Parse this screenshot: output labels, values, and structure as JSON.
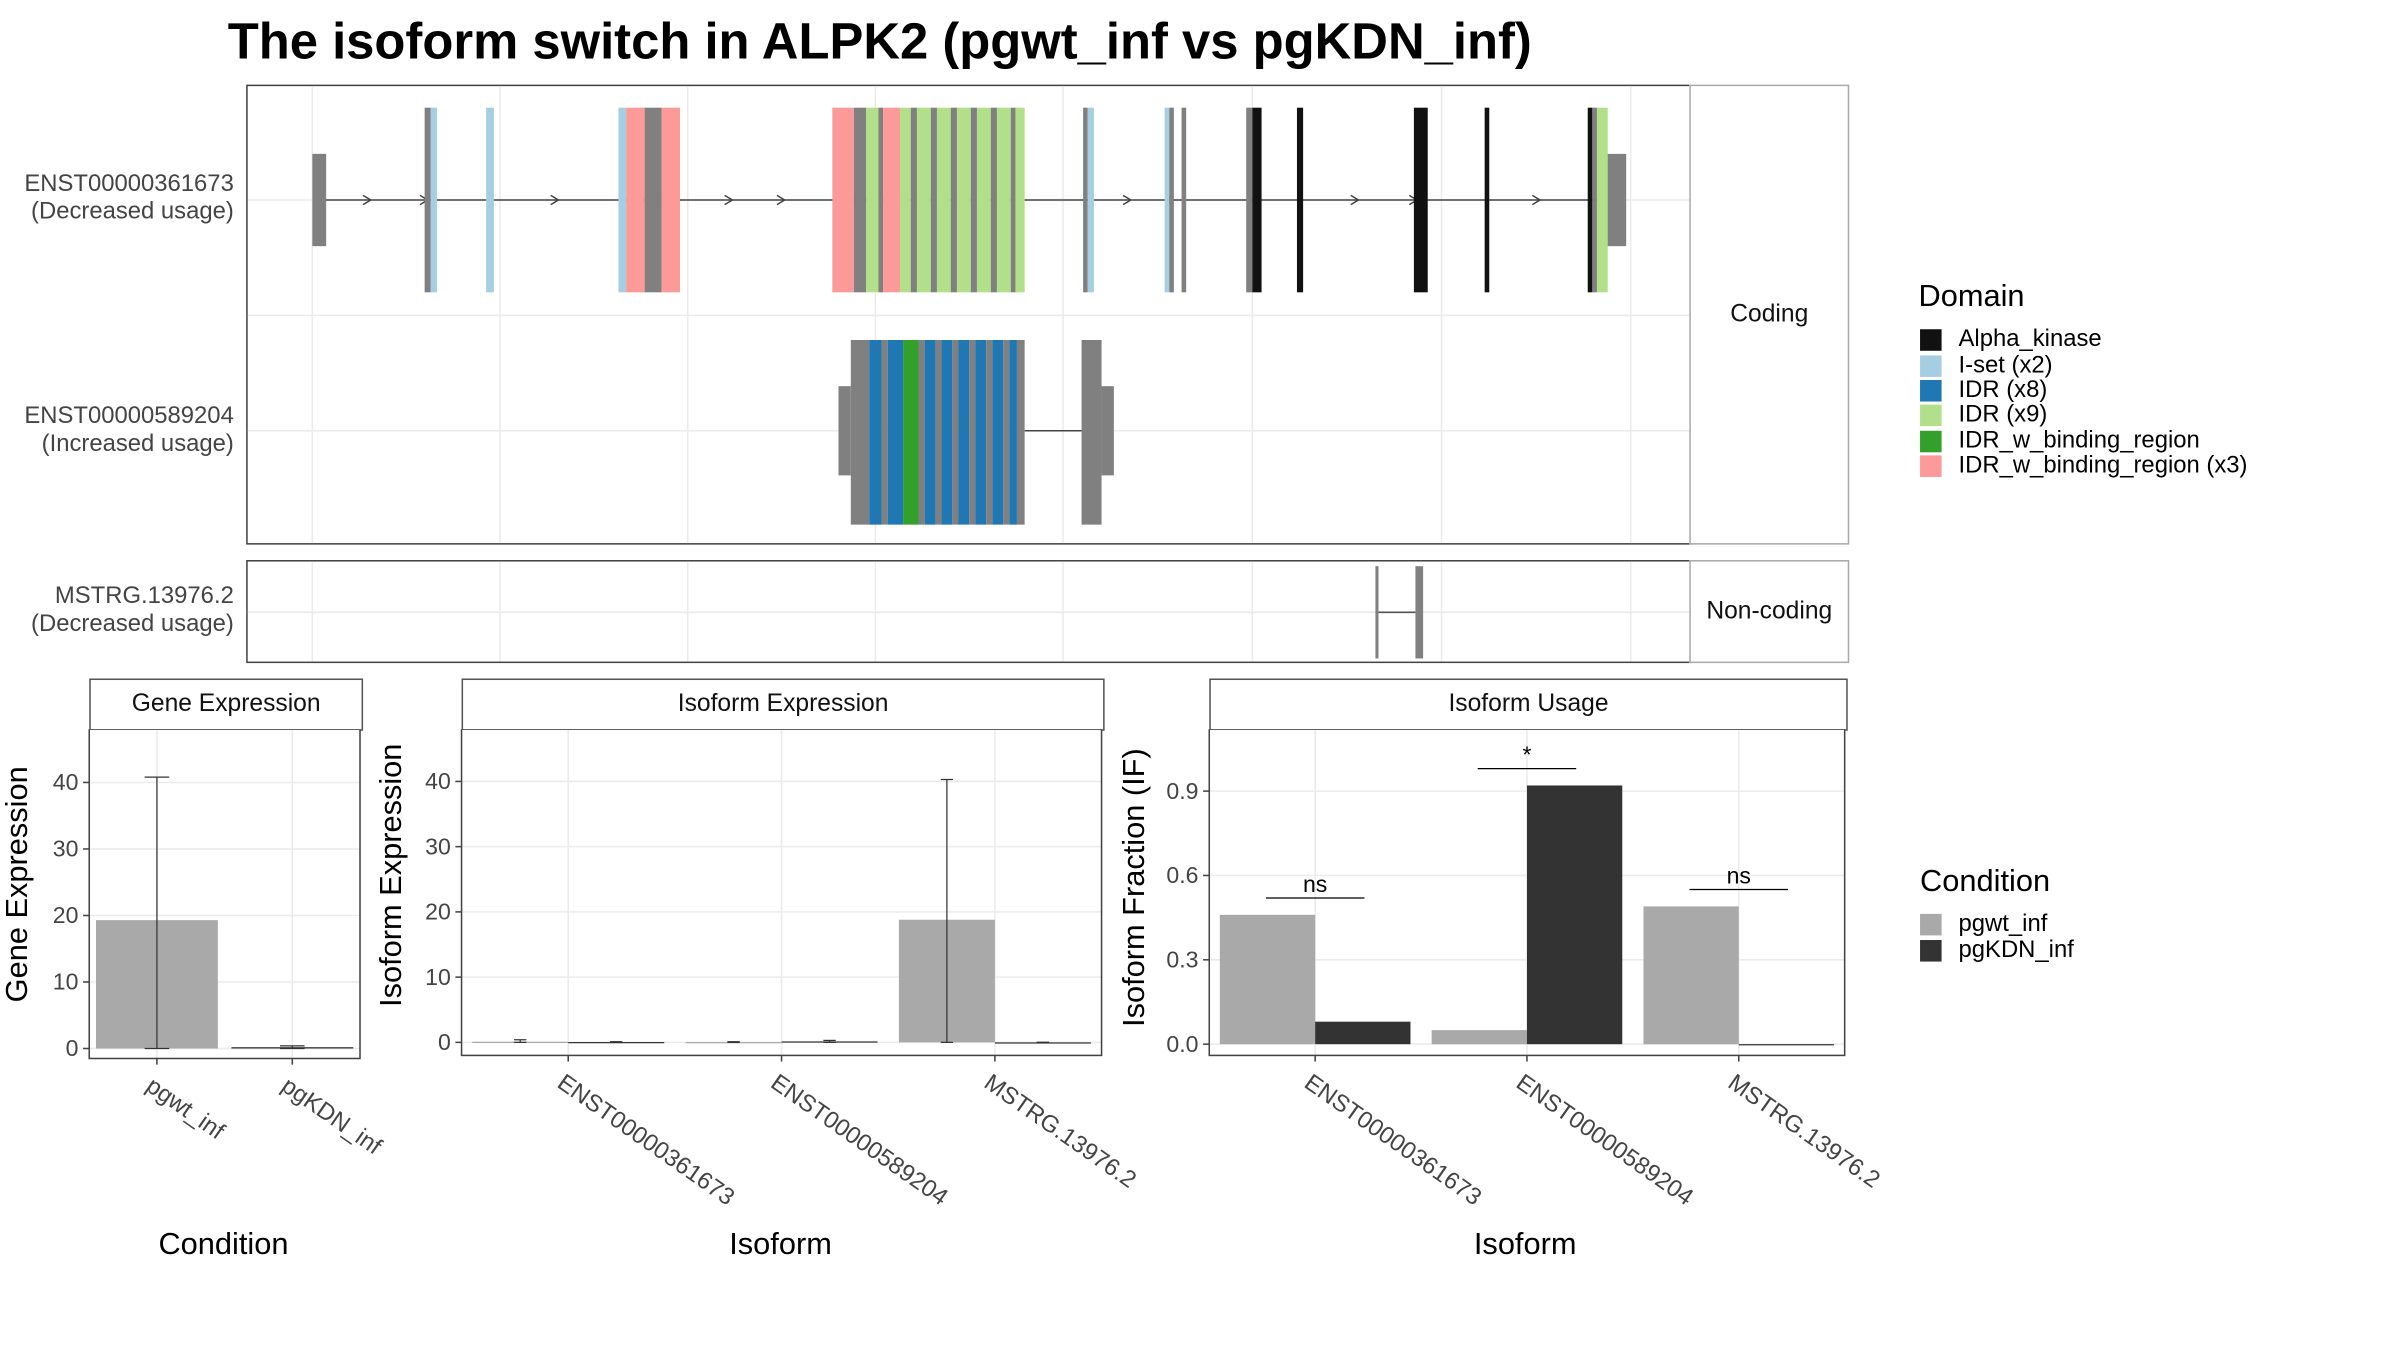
{
  "title": "The isoform switch in ALPK2 (pgwt_inf vs pgKDN_inf)",
  "structure": {
    "coding_label": "Coding",
    "noncoding_label": "Non-coding",
    "rows": [
      {
        "id": "ENST00000361673",
        "line1": "ENST00000361673",
        "line2": "(Decreased usage)"
      },
      {
        "id": "ENST00000589204",
        "line1": "ENST00000589204",
        "line2": "(Increased usage)"
      },
      {
        "id": "MSTRG.13976.2",
        "line1": "MSTRG.13976.2",
        "line2": "(Decreased usage)"
      }
    ]
  },
  "domain_legend": {
    "title": "Domain",
    "items": [
      {
        "label": "Alpha_kinase",
        "color": "#111111"
      },
      {
        "label": "I-set (x2)",
        "color": "#a6cee3"
      },
      {
        "label": "IDR (x8)",
        "color": "#1f78b4"
      },
      {
        "label": "IDR (x9)",
        "color": "#b2df8a"
      },
      {
        "label": "IDR_w_binding_region",
        "color": "#33a02c"
      },
      {
        "label": "IDR_w_binding_region (x3)",
        "color": "#fb9a99"
      }
    ]
  },
  "condition_legend": {
    "title": "Condition",
    "items": [
      {
        "label": "pgwt_inf",
        "color": "#a9a9a9"
      },
      {
        "label": "pgKDN_inf",
        "color": "#333333"
      }
    ]
  },
  "chart_data": [
    {
      "type": "bar",
      "panel": "Gene Expression",
      "categories": [
        "pgwt_inf",
        "pgKDN_inf"
      ],
      "values": [
        19.3,
        0.2
      ],
      "error_upper": [
        40.8,
        0.4
      ],
      "error_lower": [
        0,
        0
      ],
      "colors": [
        "#a9a9a9",
        "#333333"
      ],
      "xlabel": "Condition",
      "ylabel": "Gene Expression",
      "ylim": [
        -1.5,
        48
      ],
      "yticks": [
        0,
        10,
        20,
        30,
        40
      ]
    },
    {
      "type": "bar",
      "panel": "Isoform Expression",
      "categories": [
        "ENST00000361673",
        "ENST00000589204",
        "MSTRG.13976.2"
      ],
      "series": [
        {
          "name": "pgwt_inf",
          "values": [
            0.1,
            0.05,
            18.8
          ],
          "error_upper": [
            0.4,
            0.1,
            40.3
          ]
        },
        {
          "name": "pgKDN_inf",
          "values": [
            0.05,
            0.15,
            0.0
          ],
          "error_upper": [
            0.1,
            0.3,
            0.0
          ]
        }
      ],
      "xlabel": "Isoform",
      "ylabel": "Isoform Expression",
      "ylim": [
        -2,
        48
      ],
      "yticks": [
        0,
        10,
        20,
        30,
        40
      ]
    },
    {
      "type": "bar",
      "panel": "Isoform Usage",
      "categories": [
        "ENST00000361673",
        "ENST00000589204",
        "MSTRG.13976.2"
      ],
      "series": [
        {
          "name": "pgwt_inf",
          "values": [
            0.46,
            0.05,
            0.49
          ]
        },
        {
          "name": "pgKDN_inf",
          "values": [
            0.08,
            0.92,
            0.0
          ]
        }
      ],
      "significance": [
        "ns",
        "*",
        "ns"
      ],
      "xlabel": "Isoform",
      "ylabel": "Isoform Fraction (IF)",
      "ylim": [
        -0.04,
        1.12
      ],
      "yticks": [
        0.0,
        0.3,
        0.6,
        0.9
      ],
      "ytick_labels": [
        "0.0",
        "0.3",
        "0.6",
        "0.9"
      ]
    }
  ]
}
